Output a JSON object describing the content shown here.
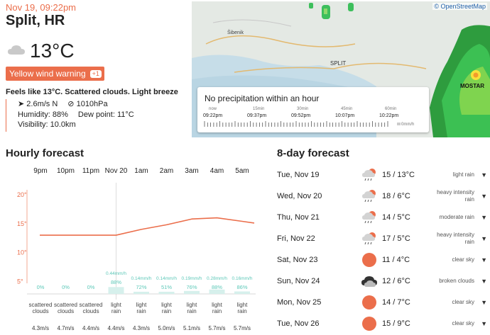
{
  "header": {
    "date": "Nov 19, 09:22pm",
    "city": "Split, HR",
    "temperature": "13°C",
    "warning_label": "Yellow wind warning",
    "warning_count": "+1",
    "feels": "Feels like 13°C. Scattered clouds. Light breeze",
    "wind": "2.6m/s N",
    "pressure": "1010hPa",
    "humidity": "Humidity: 88%",
    "dew_point": "Dew point: 11°C",
    "visibility": "Visibility: 10.0km"
  },
  "map": {
    "attribution": "© OpenStreetMap",
    "labels": [
      "Šibenik",
      "SPLIT",
      "MOSTAR"
    ],
    "precip_title": "No precipitation within an hour",
    "timeline_labels": [
      "now",
      "15min",
      "30min",
      "45min",
      "60min"
    ],
    "timeline_times": [
      "09:22pm",
      "09:37pm",
      "09:52pm",
      "10:07pm",
      "10:22pm"
    ],
    "legend": "0mm/h"
  },
  "hourly": {
    "title": "Hourly forecast",
    "hours": [
      "9pm",
      "10pm",
      "11pm",
      "Nov 20",
      "1am",
      "2am",
      "3am",
      "4am",
      "5am"
    ],
    "y_ticks": [
      "20°",
      "15°",
      "10°",
      "5°"
    ],
    "precip_amount": [
      "",
      "",
      "",
      "0.44mm/h",
      "0.14mm/h",
      "0.14mm/h",
      "0.19mm/h",
      "0.28mm/h",
      "0.16mm/h"
    ],
    "precip_pct": [
      "0%",
      "0%",
      "0%",
      "88%",
      "72%",
      "51%",
      "76%",
      "88%",
      "86%"
    ],
    "conditions": [
      [
        "scattered",
        "clouds"
      ],
      [
        "scattered",
        "clouds"
      ],
      [
        "scattered",
        "clouds"
      ],
      [
        "light",
        "rain"
      ],
      [
        "light",
        "rain"
      ],
      [
        "light",
        "rain"
      ],
      [
        "light",
        "rain"
      ],
      [
        "light",
        "rain"
      ],
      [
        "light",
        "rain"
      ]
    ],
    "wind": [
      "4.3m/s",
      "4.7m/s",
      "4.4m/s",
      "4.4m/s",
      "4.3m/s",
      "5.0m/s",
      "5.1m/s",
      "5.7m/s",
      "5.7m/s"
    ]
  },
  "chart_data": {
    "type": "line",
    "x": [
      "9pm",
      "10pm",
      "11pm",
      "Nov 20",
      "1am",
      "2am",
      "3am",
      "4am",
      "5am"
    ],
    "values": [
      13,
      13,
      13,
      13,
      14,
      14.8,
      15.8,
      16,
      15.4
    ],
    "yticks": [
      5,
      10,
      15,
      20
    ],
    "color": "#eb6e4b"
  },
  "daily": {
    "title": "8-day forecast",
    "days": [
      {
        "name": "Tue, Nov 19",
        "temp": "15 / 13°C",
        "desc": "light rain",
        "icon": "rain-icon"
      },
      {
        "name": "Wed, Nov 20",
        "temp": "18 / 6°C",
        "desc": "heavy intensity rain",
        "icon": "rain-icon"
      },
      {
        "name": "Thu, Nov 21",
        "temp": "14 / 5°C",
        "desc": "moderate rain",
        "icon": "rain-icon"
      },
      {
        "name": "Fri, Nov 22",
        "temp": "17 / 5°C",
        "desc": "heavy intensity rain",
        "icon": "rain-icon"
      },
      {
        "name": "Sat, Nov 23",
        "temp": "11 / 4°C",
        "desc": "clear sky",
        "icon": "sun-icon"
      },
      {
        "name": "Sun, Nov 24",
        "temp": "12 / 6°C",
        "desc": "broken clouds",
        "icon": "cloud-icon"
      },
      {
        "name": "Mon, Nov 25",
        "temp": "14 / 7°C",
        "desc": "clear sky",
        "icon": "sun-icon"
      },
      {
        "name": "Tue, Nov 26",
        "temp": "15 / 9°C",
        "desc": "clear sky",
        "icon": "sun-icon"
      }
    ]
  },
  "colors": {
    "accent": "#eb6e4b",
    "precip": "#5cc8b8"
  }
}
